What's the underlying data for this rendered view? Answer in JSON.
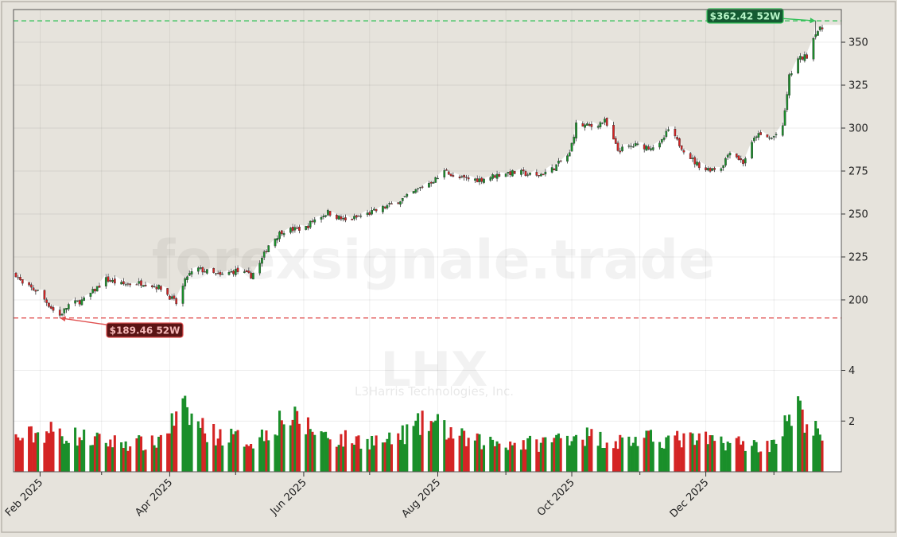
{
  "chart_data": {
    "type": "candlestick",
    "watermark": "forexsignale.trade",
    "ticker": "LHX",
    "company": "L3Harris Technologies, Inc.",
    "price_axis": {
      "ylim": [
        181,
        369
      ],
      "ticks": [
        200,
        225,
        250,
        275,
        300,
        325,
        350
      ]
    },
    "volume_axis": {
      "ylim": [
        0,
        4.8
      ],
      "ticks": [
        2,
        4
      ]
    },
    "x_axis": {
      "start": "2025-01-21",
      "end": "2026-01-23",
      "ticks": [
        {
          "date": "2025-02-01",
          "label": "Feb 2025"
        },
        {
          "date": "2025-04-01",
          "label": "Apr 2025"
        },
        {
          "date": "2025-06-01",
          "label": "Jun 2025"
        },
        {
          "date": "2025-08-01",
          "label": "Aug 2025"
        },
        {
          "date": "2025-10-01",
          "label": "Oct 2025"
        },
        {
          "date": "2025-12-01",
          "label": "Dec 2025"
        }
      ]
    },
    "high_52w": {
      "value": 362.42,
      "label": "$362.42 52W",
      "date": "2026-01-20"
    },
    "low_52w": {
      "value": 189.46,
      "label": "$189.46 52W",
      "date": "2025-02-10"
    },
    "colors": {
      "up": "#1a8f2a",
      "down": "#d42424",
      "high_line": "#35c15a",
      "low_line": "#e05050",
      "shade": "#e6e3dc"
    },
    "price_path": [
      [
        "2025-01-21",
        215
      ],
      [
        "2025-01-24",
        209
      ],
      [
        "2025-01-31",
        205
      ],
      [
        "2025-02-07",
        194
      ],
      [
        "2025-02-10",
        191
      ],
      [
        "2025-02-14",
        197
      ],
      [
        "2025-02-21",
        200
      ],
      [
        "2025-03-03",
        212
      ],
      [
        "2025-03-10",
        209
      ],
      [
        "2025-03-20",
        210
      ],
      [
        "2025-03-28",
        207
      ],
      [
        "2025-04-04",
        198
      ],
      [
        "2025-04-09",
        214
      ],
      [
        "2025-04-14",
        218
      ],
      [
        "2025-04-24",
        214
      ],
      [
        "2025-05-01",
        217
      ],
      [
        "2025-05-08",
        214
      ],
      [
        "2025-05-12",
        221
      ],
      [
        "2025-05-16",
        232
      ],
      [
        "2025-05-22",
        240
      ],
      [
        "2025-06-02",
        242
      ],
      [
        "2025-06-05",
        246
      ],
      [
        "2025-06-12",
        251
      ],
      [
        "2025-06-20",
        246
      ],
      [
        "2025-06-30",
        250
      ],
      [
        "2025-07-10",
        255
      ],
      [
        "2025-07-18",
        260
      ],
      [
        "2025-07-25",
        266
      ],
      [
        "2025-08-01",
        271
      ],
      [
        "2025-08-05",
        276
      ],
      [
        "2025-08-08",
        271
      ],
      [
        "2025-08-20",
        270
      ],
      [
        "2025-09-01",
        274
      ],
      [
        "2025-09-08",
        274
      ],
      [
        "2025-09-15",
        272
      ],
      [
        "2025-09-22",
        276
      ],
      [
        "2025-09-30",
        285
      ],
      [
        "2025-10-03",
        302
      ],
      [
        "2025-10-10",
        301
      ],
      [
        "2025-10-16",
        304
      ],
      [
        "2025-10-22",
        287
      ],
      [
        "2025-10-30",
        290
      ],
      [
        "2025-11-05",
        289
      ],
      [
        "2025-11-10",
        290
      ],
      [
        "2025-11-14",
        299
      ],
      [
        "2025-11-20",
        289
      ],
      [
        "2025-11-26",
        280
      ],
      [
        "2025-12-01",
        276
      ],
      [
        "2025-12-08",
        277
      ],
      [
        "2025-12-12",
        287
      ],
      [
        "2025-12-18",
        280
      ],
      [
        "2025-12-24",
        296
      ],
      [
        "2025-12-31",
        294
      ],
      [
        "2026-01-05",
        300
      ],
      [
        "2026-01-08",
        330
      ],
      [
        "2026-01-12",
        340
      ],
      [
        "2026-01-16",
        342
      ],
      [
        "2026-01-20",
        356
      ],
      [
        "2026-01-23",
        358
      ]
    ],
    "volume_path": [
      [
        "2025-01-21",
        1.3
      ],
      [
        "2025-02-05",
        1.6
      ],
      [
        "2025-03-01",
        1.2
      ],
      [
        "2025-03-25",
        1.1
      ],
      [
        "2025-04-07",
        2.4
      ],
      [
        "2025-04-20",
        1.5
      ],
      [
        "2025-05-10",
        1.2
      ],
      [
        "2025-05-23",
        2.2
      ],
      [
        "2025-06-15",
        1.3
      ],
      [
        "2025-07-10",
        1.2
      ],
      [
        "2025-07-28",
        2.0
      ],
      [
        "2025-08-15",
        1.2
      ],
      [
        "2025-09-15",
        1.1
      ],
      [
        "2025-10-03",
        1.5
      ],
      [
        "2025-10-20",
        1.2
      ],
      [
        "2025-11-10",
        1.3
      ],
      [
        "2025-12-10",
        1.2
      ],
      [
        "2025-12-29",
        1.0
      ],
      [
        "2026-01-12",
        2.4
      ],
      [
        "2026-01-23",
        1.3
      ]
    ]
  }
}
